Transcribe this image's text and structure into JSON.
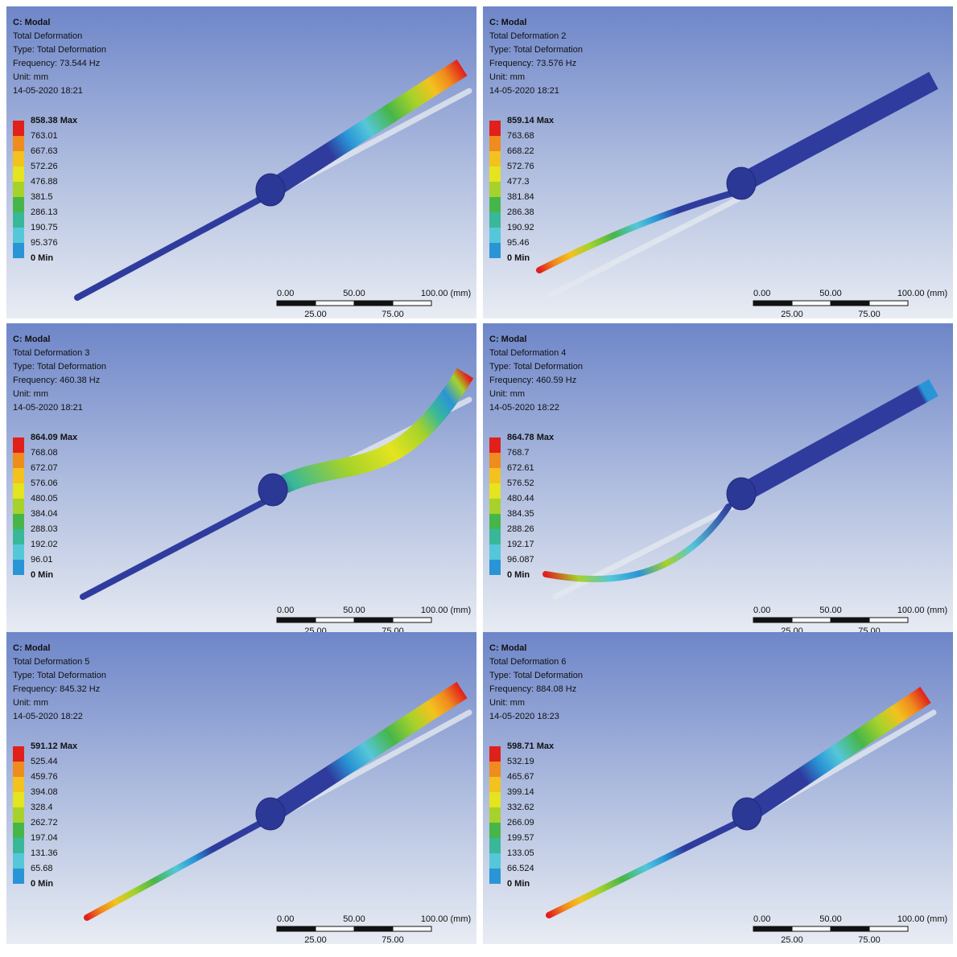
{
  "scale": {
    "labels_top": [
      "0.00",
      "50.00",
      "100.00 (mm)"
    ],
    "labels_bottom": [
      "25.00",
      "75.00"
    ]
  },
  "panels": [
    {
      "header": [
        "C: Modal",
        "Total Deformation",
        "Type: Total Deformation",
        "Frequency: 73.544 Hz",
        "Unit: mm",
        "14-05-2020 18:21"
      ],
      "legend": [
        "858.38 Max",
        "763.01",
        "667.63",
        "572.26",
        "476.88",
        "381.5",
        "286.13",
        "190.75",
        "95.376",
        "0 Min"
      ]
    },
    {
      "header": [
        "C: Modal",
        "Total Deformation 2",
        "Type: Total Deformation",
        "Frequency: 73.576 Hz",
        "Unit: mm",
        "14-05-2020 18:21"
      ],
      "legend": [
        "859.14 Max",
        "763.68",
        "668.22",
        "572.76",
        "477.3",
        "381.84",
        "286.38",
        "190.92",
        "95.46",
        "0 Min"
      ]
    },
    {
      "header": [
        "C: Modal",
        "Total Deformation 3",
        "Type: Total Deformation",
        "Frequency: 460.38 Hz",
        "Unit: mm",
        "14-05-2020 18:21"
      ],
      "legend": [
        "864.09 Max",
        "768.08",
        "672.07",
        "576.06",
        "480.05",
        "384.04",
        "288.03",
        "192.02",
        "96.01",
        "0 Min"
      ]
    },
    {
      "header": [
        "C: Modal",
        "Total Deformation 4",
        "Type: Total Deformation",
        "Frequency: 460.59 Hz",
        "Unit: mm",
        "14-05-2020 18:22"
      ],
      "legend": [
        "864.78 Max",
        "768.7",
        "672.61",
        "576.52",
        "480.44",
        "384.35",
        "288.26",
        "192.17",
        "96.087",
        "0 Min"
      ]
    },
    {
      "header": [
        "C: Modal",
        "Total Deformation 5",
        "Type: Total Deformation",
        "Frequency: 845.32 Hz",
        "Unit: mm",
        "14-05-2020 18:22"
      ],
      "legend": [
        "591.12 Max",
        "525.44",
        "459.76",
        "394.08",
        "328.4",
        "262.72",
        "197.04",
        "131.36",
        "65.68",
        "0 Min"
      ]
    },
    {
      "header": [
        "C: Modal",
        "Total Deformation 6",
        "Type: Total Deformation",
        "Frequency: 884.08 Hz",
        "Unit: mm",
        "14-05-2020 18:23"
      ],
      "legend": [
        "598.71 Max",
        "532.19",
        "465.67",
        "399.14",
        "332.62",
        "266.09",
        "199.57",
        "133.05",
        "66.524",
        "0 Min"
      ]
    }
  ]
}
